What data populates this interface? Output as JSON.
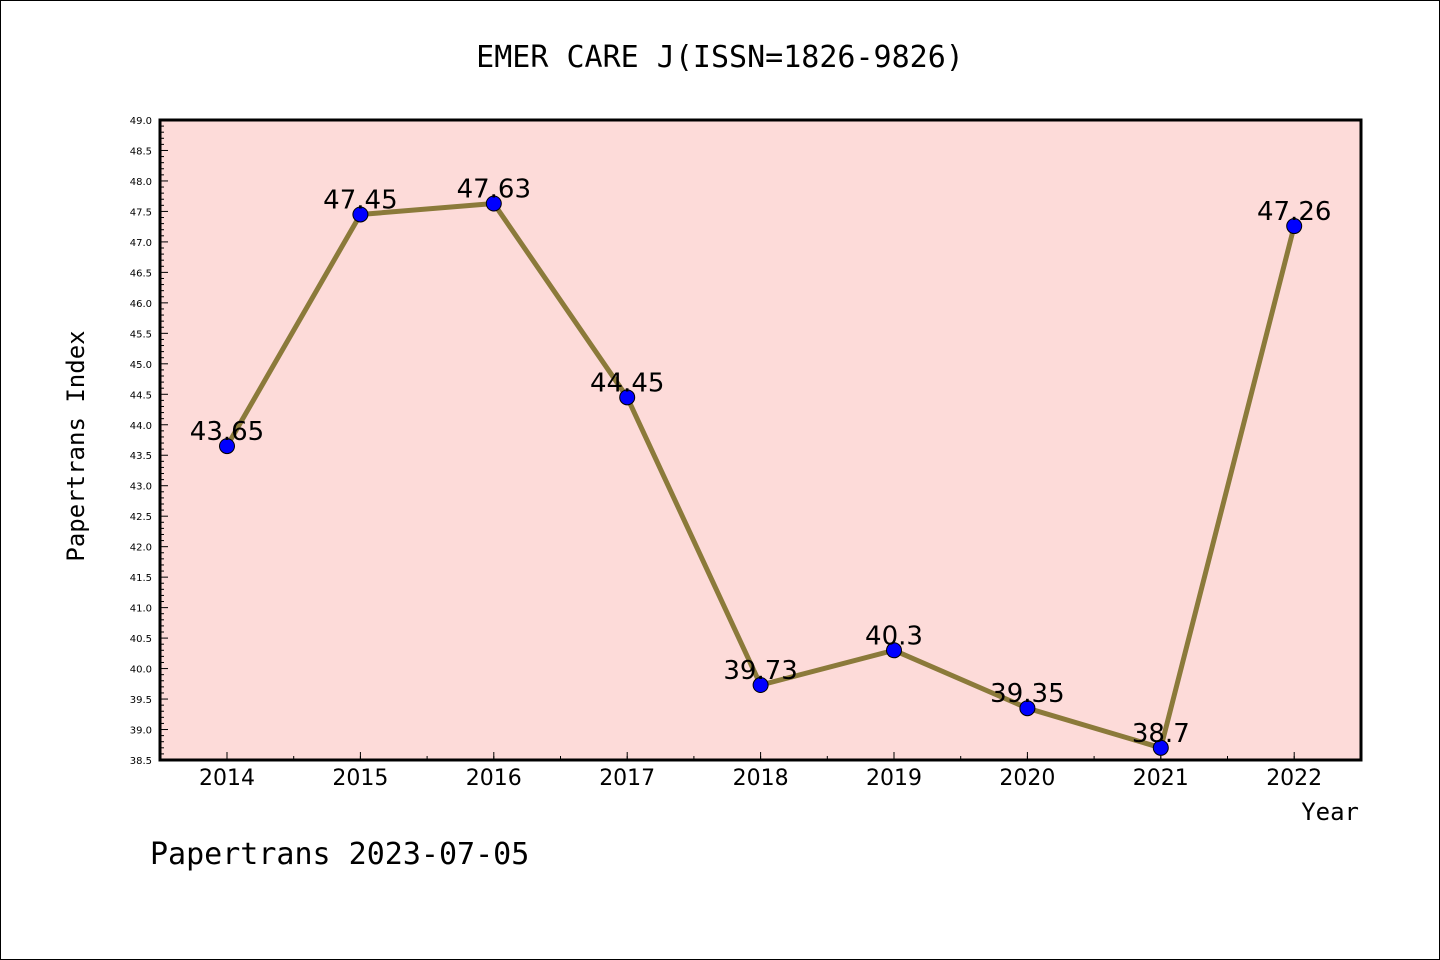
{
  "chart_data": {
    "type": "line",
    "title": "EMER CARE J(ISSN=1826-9826)",
    "xlabel": "Year",
    "ylabel": "Papertrans Index",
    "categories": [
      "2014",
      "2015",
      "2016",
      "2017",
      "2018",
      "2019",
      "2020",
      "2021",
      "2022"
    ],
    "series": [
      {
        "values": [
          43.65,
          47.45,
          47.63,
          44.45,
          39.73,
          40.3,
          39.35,
          38.7,
          47.26
        ],
        "data_labels": [
          "43.65",
          "47.45",
          "47.63",
          "44.45",
          "39.73",
          "40.3",
          "39.35",
          "38.7",
          "47.26"
        ]
      }
    ],
    "ylim": [
      38.5,
      49.0
    ],
    "yticks": [
      "38.5",
      "39.0",
      "39.5",
      "40.0",
      "40.5",
      "41.0",
      "41.5",
      "42.0",
      "42.5",
      "43.0",
      "43.5",
      "44.0",
      "44.5",
      "45.0",
      "45.5",
      "46.0",
      "46.5",
      "47.0",
      "47.5",
      "48.0",
      "48.5",
      "49.0"
    ],
    "grid": false,
    "legend": "none",
    "colors": {
      "plot_background": "#fddbd9",
      "line": "#8b7a3a",
      "marker": "#0000ff",
      "axes": "#000000"
    }
  },
  "footer": {
    "text": "Papertrans 2023-07-05"
  }
}
